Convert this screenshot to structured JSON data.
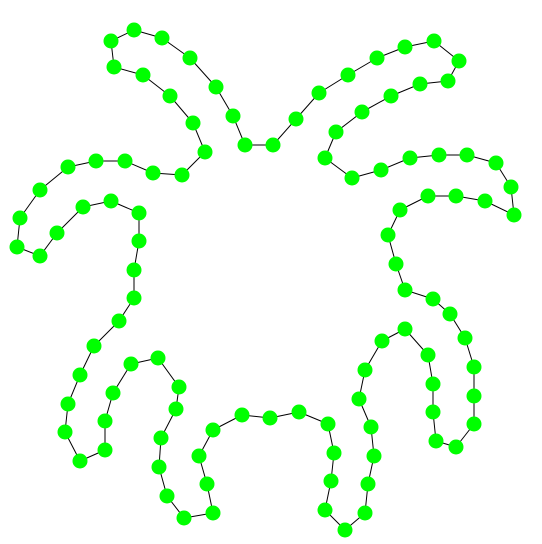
{
  "diagram": {
    "type": "closed-node-chain",
    "background_color": "#ffffff",
    "node_color": "#00ff00",
    "edge_color": "#000000",
    "node_count": 100
  }
}
